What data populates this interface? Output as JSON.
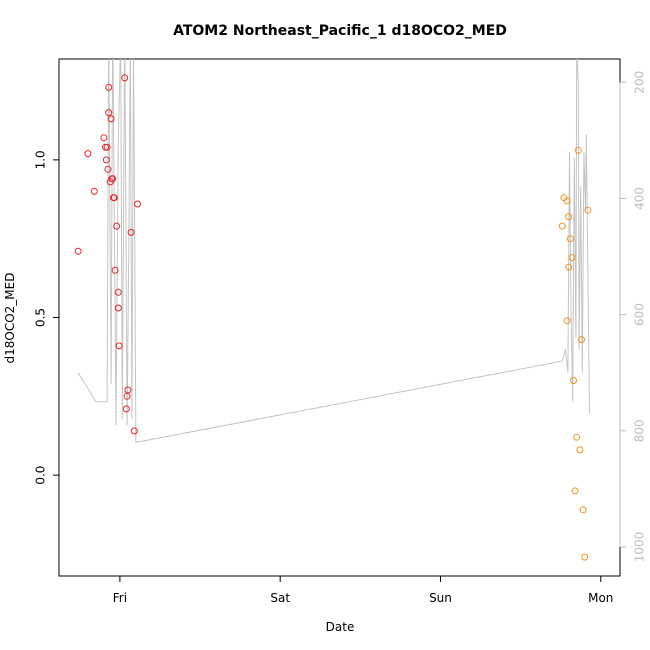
{
  "chart_data": {
    "type": "scatter",
    "title": "ATOM2 Northeast_Pacific_1 d18OCO2_MED",
    "xlabel": "Date",
    "ylabel": "d18OCO2_MED",
    "x_ticks": [
      {
        "label": "Fri",
        "value": 1.0
      },
      {
        "label": "Sat",
        "value": 2.0
      },
      {
        "label": "Sun",
        "value": 3.0
      },
      {
        "label": "Mon",
        "value": 4.0
      }
    ],
    "xlim": [
      0.62,
      4.12
    ],
    "ylim": [
      -0.32,
      1.32
    ],
    "y_ticks": [
      "0.0",
      "0.5",
      "1.0"
    ],
    "y_tick_values": [
      0.0,
      0.5,
      1.0
    ],
    "y2lim": [
      1050,
      160
    ],
    "y2_ticks": [
      "200",
      "400",
      "600",
      "800",
      "1000"
    ],
    "y2_tick_values": [
      200,
      400,
      600,
      800,
      1000
    ],
    "series": [
      {
        "color": "#e8262a",
        "marker": "circle-open",
        "points": [
          [
            0.74,
            0.71
          ],
          [
            0.8,
            1.02
          ],
          [
            0.84,
            0.9
          ],
          [
            0.9,
            1.07
          ],
          [
            0.91,
            1.04
          ],
          [
            0.915,
            1.0
          ],
          [
            0.92,
            1.04
          ],
          [
            0.925,
            0.97
          ],
          [
            0.93,
            1.23
          ],
          [
            0.93,
            1.15
          ],
          [
            0.94,
            0.93
          ],
          [
            0.945,
            1.13
          ],
          [
            0.95,
            0.94
          ],
          [
            0.955,
            0.94
          ],
          [
            0.96,
            0.88
          ],
          [
            0.965,
            0.88
          ],
          [
            0.97,
            0.65
          ],
          [
            0.98,
            0.79
          ],
          [
            0.99,
            0.58
          ],
          [
            0.99,
            0.53
          ],
          [
            0.995,
            0.41
          ],
          [
            1.03,
            1.26
          ],
          [
            1.04,
            0.21
          ],
          [
            1.045,
            0.25
          ],
          [
            1.05,
            0.27
          ],
          [
            1.07,
            0.77
          ],
          [
            1.09,
            0.14
          ],
          [
            1.11,
            0.86
          ]
        ]
      },
      {
        "color": "#f0941e",
        "marker": "circle-open",
        "points": [
          [
            3.76,
            0.79
          ],
          [
            3.77,
            0.88
          ],
          [
            3.79,
            0.87
          ],
          [
            3.79,
            0.49
          ],
          [
            3.8,
            0.82
          ],
          [
            3.8,
            0.66
          ],
          [
            3.81,
            0.75
          ],
          [
            3.82,
            0.69
          ],
          [
            3.83,
            0.3
          ],
          [
            3.84,
            -0.05
          ],
          [
            3.85,
            0.12
          ],
          [
            3.86,
            1.03
          ],
          [
            3.87,
            0.08
          ],
          [
            3.88,
            0.43
          ],
          [
            3.89,
            -0.11
          ],
          [
            3.9,
            -0.26
          ],
          [
            3.92,
            0.84
          ]
        ]
      }
    ],
    "line_series": {
      "axis": "right",
      "color": "#c4c4c4",
      "points": [
        [
          0.74,
          700
        ],
        [
          0.85,
          750
        ],
        [
          0.92,
          750
        ],
        [
          0.93,
          120
        ],
        [
          0.945,
          720
        ],
        [
          0.955,
          80
        ],
        [
          0.975,
          790
        ],
        [
          0.99,
          300
        ],
        [
          1.005,
          120
        ],
        [
          1.015,
          780
        ],
        [
          1.03,
          100
        ],
        [
          1.045,
          790
        ],
        [
          1.055,
          500
        ],
        [
          1.065,
          120
        ],
        [
          1.075,
          780
        ],
        [
          1.085,
          130
        ],
        [
          1.1,
          820
        ],
        [
          3.76,
          680
        ],
        [
          3.78,
          660
        ],
        [
          3.795,
          700
        ],
        [
          3.805,
          320
        ],
        [
          3.815,
          600
        ],
        [
          3.825,
          750
        ],
        [
          3.835,
          330
        ],
        [
          3.845,
          640
        ],
        [
          3.85,
          140
        ],
        [
          3.86,
          200
        ],
        [
          3.865,
          660
        ],
        [
          3.875,
          380
        ],
        [
          3.885,
          700
        ],
        [
          3.895,
          320
        ],
        [
          3.905,
          420
        ],
        [
          3.91,
          290
        ],
        [
          3.93,
          770
        ]
      ]
    }
  }
}
